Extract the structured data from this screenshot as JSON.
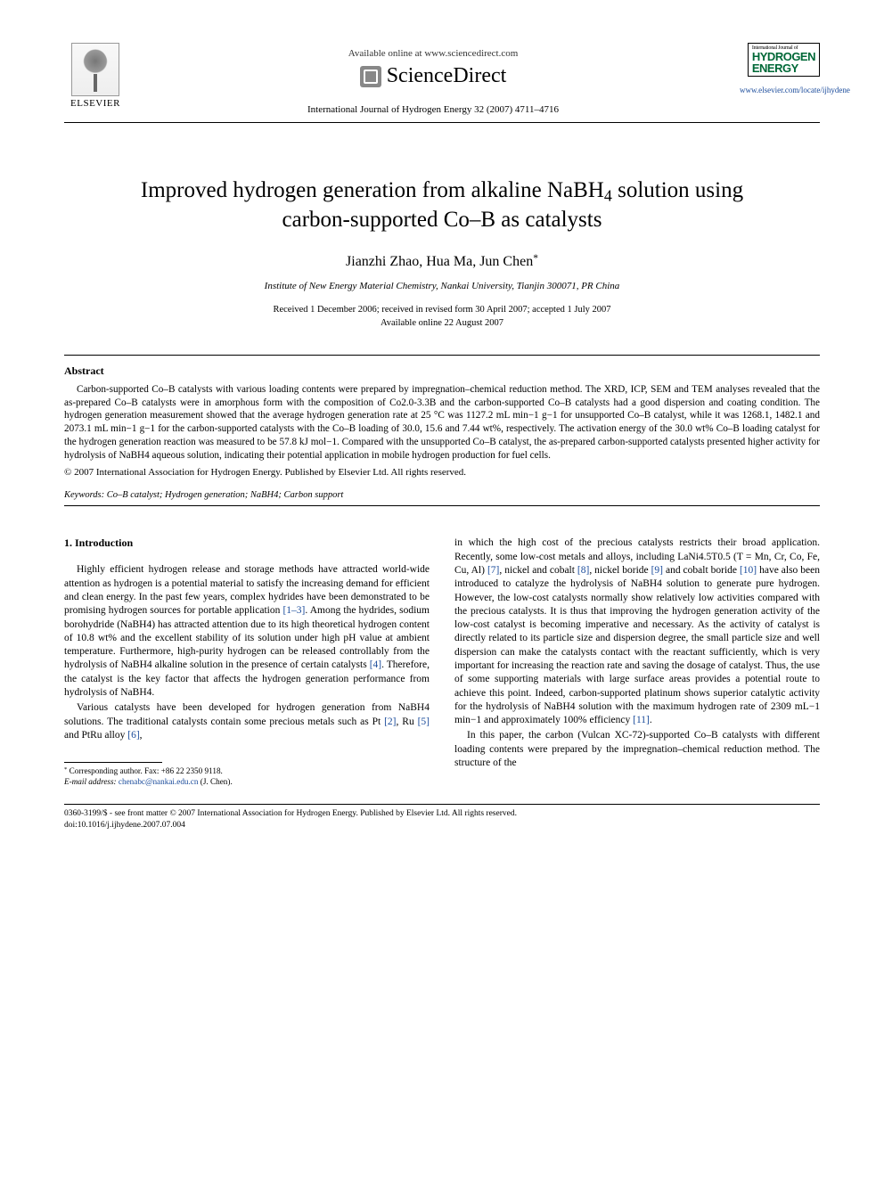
{
  "header": {
    "elsevier_label": "ELSEVIER",
    "available_online": "Available online at www.sciencedirect.com",
    "sciencedirect": "ScienceDirect",
    "journal_ref": "International Journal of Hydrogen Energy 32 (2007) 4711–4716",
    "hydrogen_top": "International Journal of",
    "hydrogen_main1": "HYDROGEN",
    "hydrogen_main2": "ENERGY",
    "journal_link": "www.elsevier.com/locate/ijhydene"
  },
  "title_line1": "Improved hydrogen generation from alkaline NaBH",
  "title_sub": "4",
  "title_line1b": " solution using",
  "title_line2": "carbon-supported Co–B as catalysts",
  "authors": "Jianzhi Zhao, Hua Ma, Jun Chen",
  "corr_mark": "*",
  "affiliation": "Institute of New Energy Material Chemistry, Nankai University, Tianjin 300071, PR China",
  "dates_line1": "Received 1 December 2006; received in revised form 30 April 2007; accepted 1 July 2007",
  "dates_line2": "Available online 22 August 2007",
  "abstract": {
    "heading": "Abstract",
    "body": "Carbon-supported Co–B catalysts with various loading contents were prepared by impregnation–chemical reduction method. The XRD, ICP, SEM and TEM analyses revealed that the as-prepared Co–B catalysts were in amorphous form with the composition of Co2.0-3.3B and the carbon-supported Co–B catalysts had a good dispersion and coating condition. The hydrogen generation measurement showed that the average hydrogen generation rate at 25 °C was 1127.2 mL min−1 g−1 for unsupported Co–B catalyst, while it was 1268.1, 1482.1 and 2073.1 mL min−1 g−1 for the carbon-supported catalysts with the Co–B loading of 30.0, 15.6 and 7.44 wt%, respectively. The activation energy of the 30.0 wt% Co–B loading catalyst for the hydrogen generation reaction was measured to be 57.8 kJ mol−1. Compared with the unsupported Co–B catalyst, the as-prepared carbon-supported catalysts presented higher activity for hydrolysis of NaBH4 aqueous solution, indicating their potential application in mobile hydrogen production for fuel cells.",
    "copyright": "© 2007 International Association for Hydrogen Energy. Published by Elsevier Ltd. All rights reserved."
  },
  "keywords": {
    "label": "Keywords:",
    "text": " Co–B catalyst; Hydrogen generation; NaBH4; Carbon support"
  },
  "intro": {
    "heading": "1.  Introduction",
    "p1": "Highly efficient hydrogen release and storage methods have attracted world-wide attention as hydrogen is a potential material to satisfy the increasing demand for efficient and clean energy. In the past few years, complex hydrides have been demonstrated to be promising hydrogen sources for portable application ",
    "p1_ref1": "[1–3]",
    "p1b": ". Among the hydrides, sodium borohydride (NaBH4) has attracted attention due to its high theoretical hydrogen content of 10.8 wt% and the excellent stability of its solution under high pH value at ambient temperature. Furthermore, high-purity hydrogen can be released controllably from the hydrolysis of NaBH4 alkaline solution in the presence of certain catalysts ",
    "p1_ref2": "[4]",
    "p1c": ". Therefore, the catalyst is the key factor that affects the hydrogen generation performance from hydrolysis of NaBH4.",
    "p2a": "Various catalysts have been developed for hydrogen generation from NaBH4 solutions. The traditional catalysts contain some precious metals such as Pt ",
    "p2_ref1": "[2]",
    "p2b": ", Ru ",
    "p2_ref2": "[5]",
    "p2c": " and PtRu alloy ",
    "p2_ref3": "[6]",
    "p2d": ",",
    "r1a": "in which the high cost of the precious catalysts restricts their broad application. Recently, some low-cost metals and alloys, including LaNi4.5T0.5 (T = Mn, Cr, Co, Fe, Cu, Al) ",
    "r1_ref1": "[7]",
    "r1b": ", nickel and cobalt ",
    "r1_ref2": "[8]",
    "r1c": ", nickel boride ",
    "r1_ref3": "[9]",
    "r1d": " and cobalt boride ",
    "r1_ref4": "[10]",
    "r1e": " have also been introduced to catalyze the hydrolysis of NaBH4 solution to generate pure hydrogen. However, the low-cost catalysts normally show relatively low activities compared with the precious catalysts. It is thus that improving the hydrogen generation activity of the low-cost catalyst is becoming imperative and necessary. As the activity of catalyst is directly related to its particle size and dispersion degree, the small particle size and well dispersion can make the catalysts contact with the reactant sufficiently, which is very important for increasing the reaction rate and saving the dosage of catalyst. Thus, the use of some supporting materials with large surface areas provides a potential route to achieve this point. Indeed, carbon-supported platinum shows superior catalytic activity for the hydrolysis of NaBH4 solution with the maximum hydrogen rate of 2309 mL−1 min−1 and approximately 100% efficiency ",
    "r1_ref5": "[11]",
    "r1f": ".",
    "r2": "In this paper, the carbon (Vulcan XC-72)-supported Co–B catalysts with different loading contents were prepared by the impregnation–chemical reduction method. The structure of the"
  },
  "footnote": {
    "corr": "Corresponding author. Fax: +86 22 2350 9118.",
    "email_label": "E-mail address:",
    "email": " chenabc@nankai.edu.cn",
    "email_tail": " (J. Chen)."
  },
  "footer": {
    "line1": "0360-3199/$ - see front matter © 2007 International Association for Hydrogen Energy. Published by Elsevier Ltd. All rights reserved.",
    "line2": "doi:10.1016/j.ijhydene.2007.07.004"
  },
  "colors": {
    "link": "#1a4b9b",
    "brand_green": "#006837",
    "text": "#000000",
    "bg": "#ffffff"
  },
  "typography": {
    "title_pt": 25,
    "authors_pt": 16,
    "body_pt": 11.5,
    "abstract_pt": 11.2,
    "footnote_pt": 9.2
  }
}
